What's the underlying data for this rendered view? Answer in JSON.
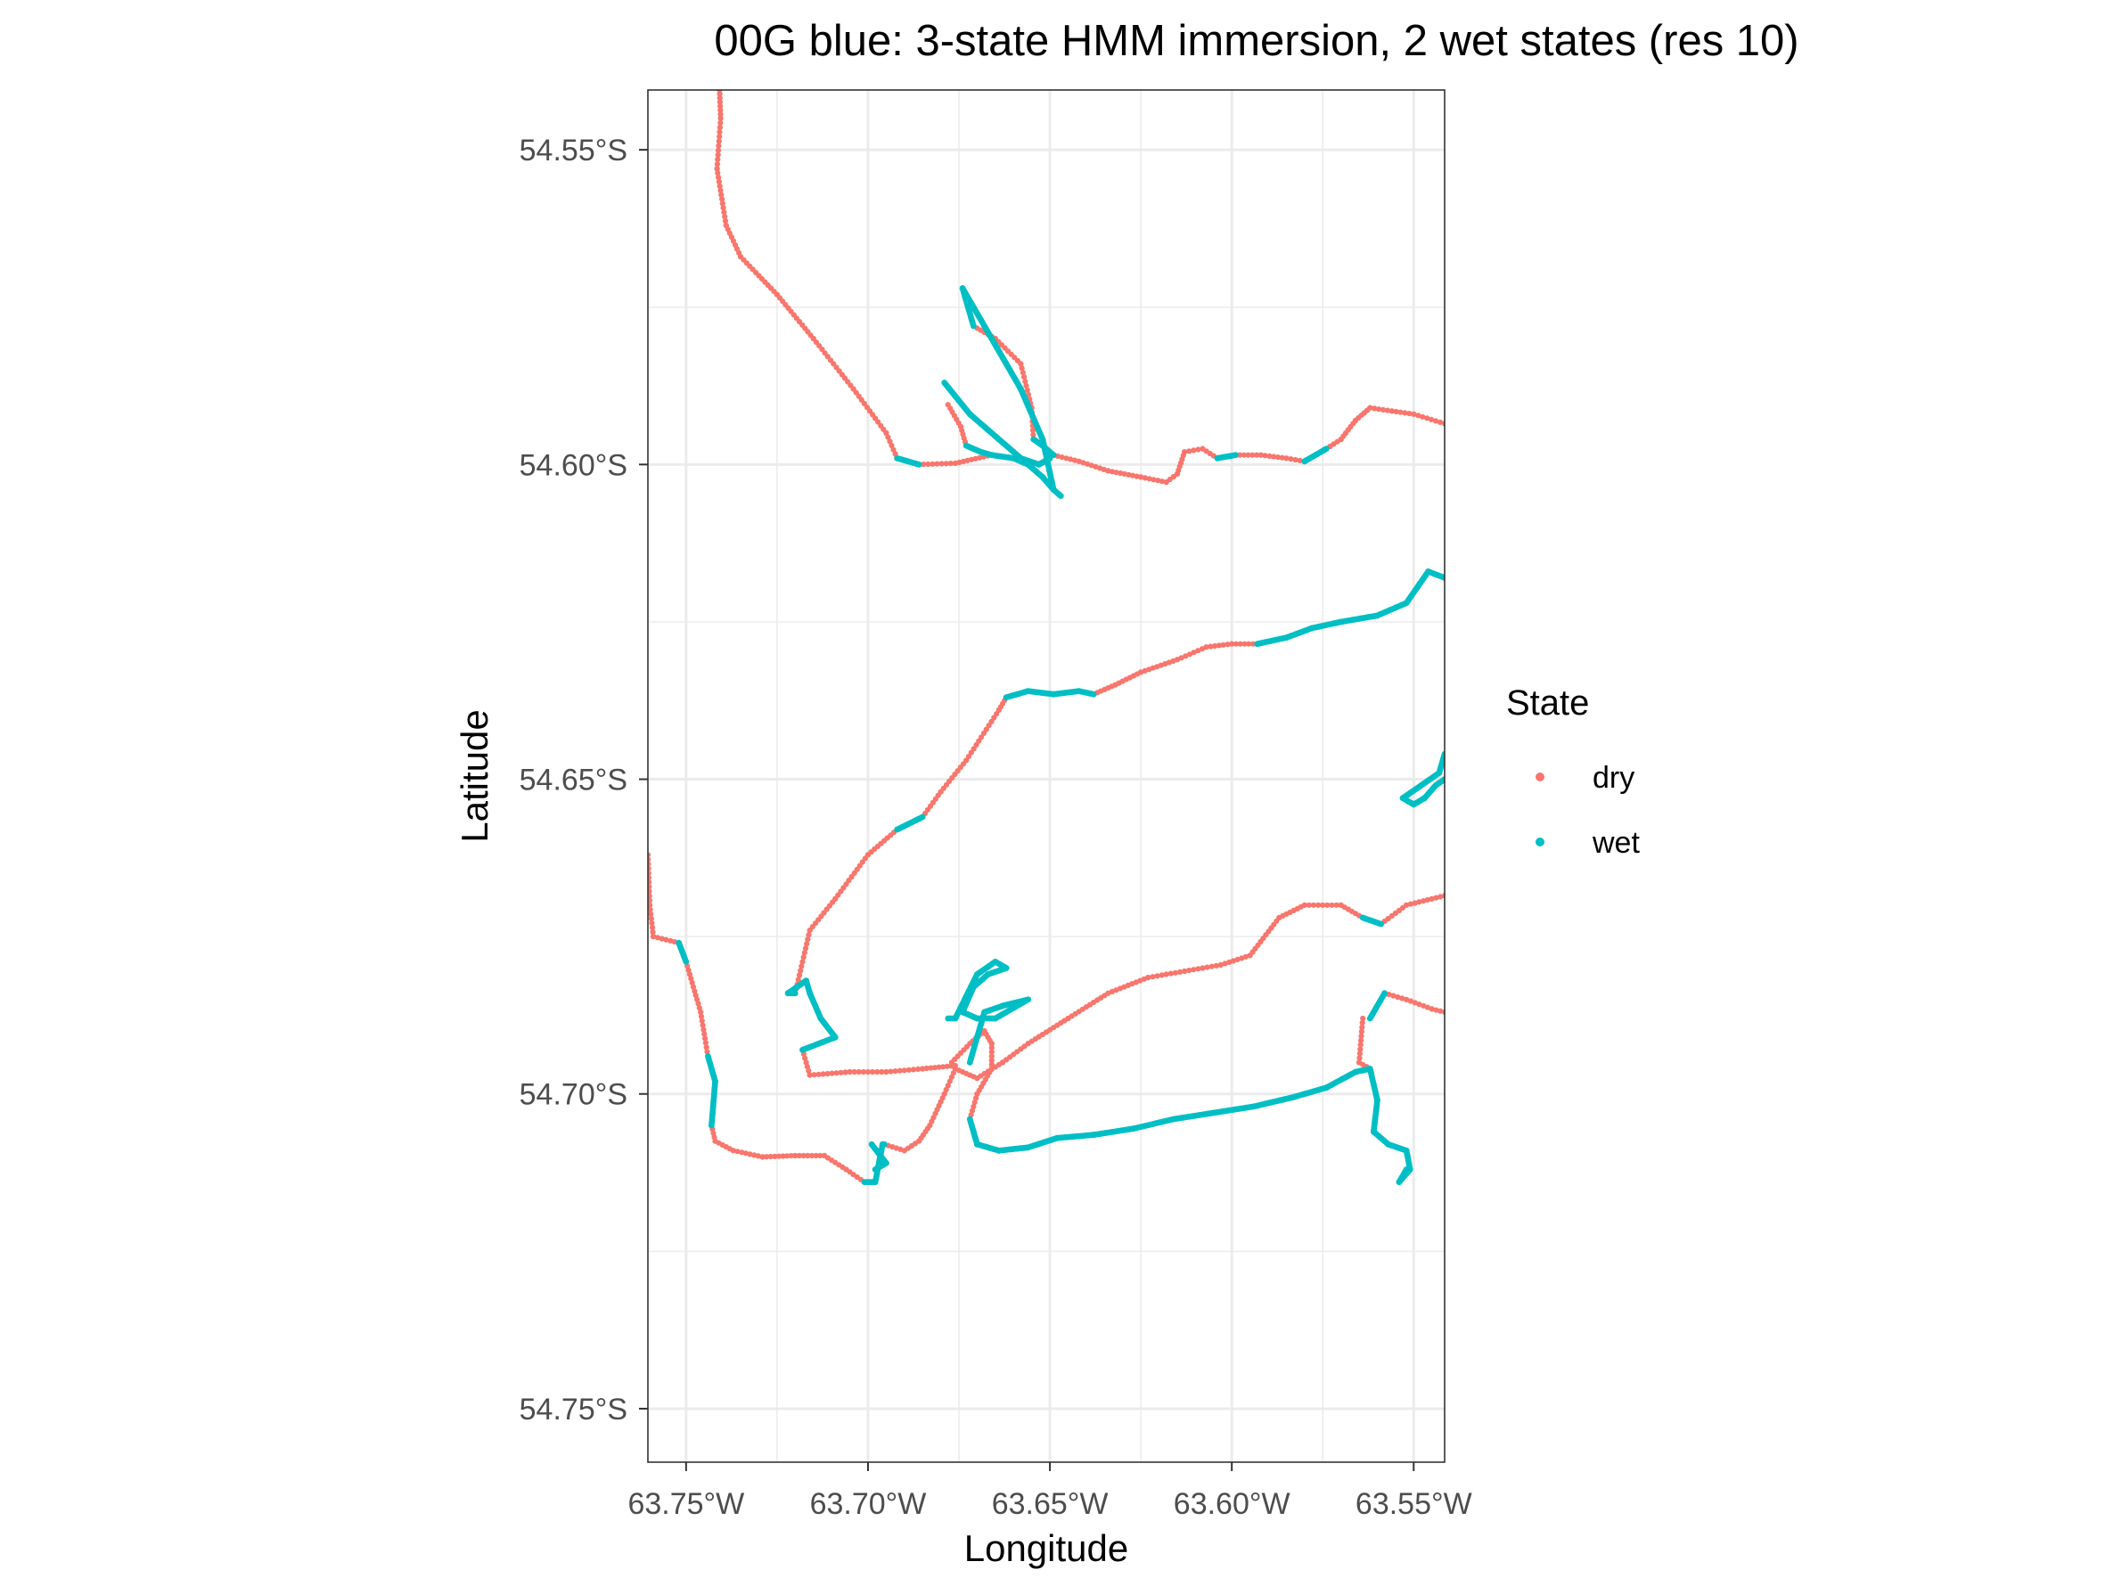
{
  "chart_data": {
    "type": "scatter",
    "title": "00G blue: 3-state HMM immersion, 2 wet states (res 10)",
    "xlabel": "Longitude",
    "ylabel": "Latitude",
    "xlim": [
      -63.7605,
      -63.5415
    ],
    "ylim": [
      -54.7585,
      -54.5405
    ],
    "x_ticks": [
      {
        "value": -63.75,
        "label": "63.75°W"
      },
      {
        "value": -63.7,
        "label": "63.70°W"
      },
      {
        "value": -63.65,
        "label": "63.65°W"
      },
      {
        "value": -63.6,
        "label": "63.60°W"
      },
      {
        "value": -63.55,
        "label": "63.55°W"
      }
    ],
    "y_ticks": [
      {
        "value": -54.55,
        "label": "54.55°S"
      },
      {
        "value": -54.6,
        "label": "54.60°S"
      },
      {
        "value": -54.65,
        "label": "54.65°S"
      },
      {
        "value": -54.7,
        "label": "54.70°S"
      },
      {
        "value": -54.75,
        "label": "54.75°S"
      }
    ],
    "grid": true,
    "legend": {
      "title": "State",
      "position": "right",
      "entries": [
        {
          "label": "dry",
          "color": "#F8766D"
        },
        {
          "label": "wet",
          "color": "#00BFC4"
        }
      ]
    },
    "series": [
      {
        "name": "dry",
        "color": "#F8766D",
        "segments": [
          [
            [
              -63.7408,
              -54.5405
            ],
            [
              -63.7405,
              -54.545
            ],
            [
              -63.7415,
              -54.553
            ],
            [
              -63.739,
              -54.562
            ],
            [
              -63.735,
              -54.567
            ],
            [
              -63.725,
              -54.573
            ],
            [
              -63.715,
              -54.58
            ],
            [
              -63.704,
              -54.588
            ],
            [
              -63.695,
              -54.595
            ],
            [
              -63.692,
              -54.599
            ]
          ],
          [
            [
              -63.686,
              -54.6
            ],
            [
              -63.676,
              -54.5998
            ],
            [
              -63.666,
              -54.5985
            ]
          ],
          [
            [
              -63.678,
              -54.5905
            ],
            [
              -63.6745,
              -54.594
            ],
            [
              -63.673,
              -54.597
            ]
          ],
          [
            [
              -63.671,
              -54.578
            ],
            [
              -63.665,
              -54.58
            ],
            [
              -63.658,
              -54.584
            ],
            [
              -63.655,
              -54.591
            ],
            [
              -63.6545,
              -54.596
            ]
          ],
          [
            [
              -63.649,
              -54.5985
            ],
            [
              -63.642,
              -54.5995
            ],
            [
              -63.634,
              -54.601
            ],
            [
              -63.625,
              -54.602
            ],
            [
              -63.618,
              -54.6028
            ],
            [
              -63.615,
              -54.6015
            ],
            [
              -63.613,
              -54.598
            ],
            [
              -63.608,
              -54.5975
            ],
            [
              -63.604,
              -54.599
            ]
          ],
          [
            [
              -63.599,
              -54.5985
            ],
            [
              -63.592,
              -54.5985
            ],
            [
              -63.585,
              -54.599
            ],
            [
              -63.58,
              -54.5995
            ]
          ],
          [
            [
              -63.574,
              -54.5975
            ],
            [
              -63.57,
              -54.596
            ],
            [
              -63.566,
              -54.593
            ],
            [
              -63.562,
              -54.591
            ],
            [
              -63.556,
              -54.5915
            ],
            [
              -63.55,
              -54.592
            ],
            [
              -63.5415,
              -54.5935
            ]
          ],
          [
            [
              -63.7605,
              -54.662
            ],
            [
              -63.76,
              -54.67
            ],
            [
              -63.759,
              -54.675
            ],
            [
              -63.752,
              -54.676
            ]
          ],
          [
            [
              -63.75,
              -54.679
            ],
            [
              -63.746,
              -54.687
            ],
            [
              -63.744,
              -54.694
            ]
          ],
          [
            [
              -63.743,
              -54.705
            ],
            [
              -63.742,
              -54.7075
            ],
            [
              -63.737,
              -54.709
            ],
            [
              -63.729,
              -54.71
            ],
            [
              -63.72,
              -54.7098
            ],
            [
              -63.712,
              -54.7098
            ],
            [
              -63.706,
              -54.712
            ],
            [
              -63.701,
              -54.714
            ]
          ],
          [
            [
              -63.6955,
              -54.708
            ],
            [
              -63.69,
              -54.709
            ],
            [
              -63.686,
              -54.7075
            ],
            [
              -63.683,
              -54.705
            ],
            [
              -63.679,
              -54.7
            ],
            [
              -63.676,
              -54.696
            ],
            [
              -63.67,
              -54.6975
            ],
            [
              -63.663,
              -54.695
            ],
            [
              -63.656,
              -54.692
            ],
            [
              -63.645,
              -54.688
            ],
            [
              -63.634,
              -54.684
            ],
            [
              -63.623,
              -54.6815
            ],
            [
              -63.613,
              -54.6805
            ],
            [
              -63.603,
              -54.6795
            ],
            [
              -63.595,
              -54.678
            ],
            [
              -63.587,
              -54.672
            ],
            [
              -63.58,
              -54.67
            ],
            [
              -63.57,
              -54.67
            ],
            [
              -63.564,
              -54.672
            ]
          ],
          [
            [
              -63.559,
              -54.673
            ],
            [
              -63.552,
              -54.67
            ],
            [
              -63.545,
              -54.669
            ],
            [
              -63.5415,
              -54.6685
            ]
          ],
          [
            [
              -63.718,
              -54.693
            ],
            [
              -63.716,
              -54.697
            ],
            [
              -63.705,
              -54.6965
            ],
            [
              -63.695,
              -54.6965
            ],
            [
              -63.685,
              -54.696
            ],
            [
              -63.676,
              -54.6955
            ]
          ],
          [
            [
              -63.677,
              -54.695
            ],
            [
              -63.672,
              -54.692
            ],
            [
              -63.668,
              -54.69
            ],
            [
              -63.666,
              -54.692
            ],
            [
              -63.666,
              -54.696
            ],
            [
              -63.67,
              -54.7
            ],
            [
              -63.672,
              -54.704
            ]
          ],
          [
            [
              -63.72,
              -54.684
            ],
            [
              -63.716,
              -54.674
            ],
            [
              -63.709,
              -54.669
            ],
            [
              -63.7,
              -54.662
            ],
            [
              -63.692,
              -54.658
            ]
          ],
          [
            [
              -63.685,
              -54.656
            ],
            [
              -63.68,
              -54.652
            ],
            [
              -63.673,
              -54.647
            ],
            [
              -63.664,
              -54.639
            ],
            [
              -63.662,
              -54.637
            ]
          ],
          [
            [
              -63.638,
              -54.6365
            ],
            [
              -63.632,
              -54.635
            ],
            [
              -63.625,
              -54.633
            ],
            [
              -63.615,
              -54.631
            ],
            [
              -63.607,
              -54.629
            ],
            [
              -63.6,
              -54.6285
            ],
            [
              -63.593,
              -54.6285
            ]
          ],
          [
            [
              -63.564,
              -54.688
            ],
            [
              -63.565,
              -54.695
            ],
            [
              -63.562,
              -54.696
            ]
          ],
          [
            [
              -63.558,
              -54.684
            ],
            [
              -63.552,
              -54.685
            ],
            [
              -63.545,
              -54.6865
            ],
            [
              -63.5415,
              -54.687
            ]
          ]
        ]
      },
      {
        "name": "wet",
        "color": "#00BFC4",
        "segments": [
          [
            [
              -63.692,
              -54.599
            ],
            [
              -63.686,
              -54.6
            ]
          ],
          [
            [
              -63.673,
              -54.597
            ],
            [
              -63.669,
              -54.598
            ],
            [
              -63.666,
              -54.5985
            ],
            [
              -63.66,
              -54.599
            ],
            [
              -63.656,
              -54.6
            ],
            [
              -63.652,
              -54.602
            ],
            [
              -63.649,
              -54.604
            ]
          ],
          [
            [
              -63.679,
              -54.587
            ],
            [
              -63.672,
              -54.592
            ],
            [
              -63.664,
              -54.596
            ],
            [
              -63.658,
              -54.599
            ],
            [
              -63.653,
              -54.6
            ],
            [
              -63.65,
              -54.599
            ]
          ],
          [
            [
              -63.674,
              -54.572
            ],
            [
              -63.671,
              -54.578
            ]
          ],
          [
            [
              -63.6545,
              -54.596
            ],
            [
              -63.652,
              -54.597
            ],
            [
              -63.649,
              -54.5985
            ]
          ],
          [
            [
              -63.674,
              -54.572
            ],
            [
              -63.666,
              -54.58
            ],
            [
              -63.658,
              -54.588
            ],
            [
              -63.652,
              -54.596
            ],
            [
              -63.649,
              -54.604
            ],
            [
              -63.647,
              -54.605
            ]
          ],
          [
            [
              -63.604,
              -54.599
            ],
            [
              -63.599,
              -54.5985
            ]
          ],
          [
            [
              -63.58,
              -54.5995
            ],
            [
              -63.574,
              -54.5975
            ]
          ],
          [
            [
              -63.593,
              -54.6285
            ],
            [
              -63.585,
              -54.6275
            ],
            [
              -63.578,
              -54.626
            ],
            [
              -63.57,
              -54.625
            ],
            [
              -63.56,
              -54.624
            ],
            [
              -63.552,
              -54.622
            ],
            [
              -63.546,
              -54.617
            ],
            [
              -63.5415,
              -54.618
            ]
          ],
          [
            [
              -63.662,
              -54.637
            ],
            [
              -63.656,
              -54.636
            ],
            [
              -63.649,
              -54.6365
            ],
            [
              -63.642,
              -54.636
            ],
            [
              -63.638,
              -54.6365
            ]
          ],
          [
            [
              -63.692,
              -54.658
            ],
            [
              -63.685,
              -54.656
            ]
          ],
          [
            [
              -63.722,
              -54.684
            ],
            [
              -63.717,
              -54.682
            ],
            [
              -63.716,
              -54.684
            ],
            [
              -63.713,
              -54.688
            ],
            [
              -63.709,
              -54.691
            ],
            [
              -63.718,
              -54.693
            ]
          ],
          [
            [
              -63.72,
              -54.684
            ],
            [
              -63.722,
              -54.684
            ]
          ],
          [
            [
              -63.752,
              -54.676
            ],
            [
              -63.75,
              -54.679
            ]
          ],
          [
            [
              -63.744,
              -54.694
            ],
            [
              -63.742,
              -54.698
            ],
            [
              -63.743,
              -54.705
            ]
          ],
          [
            [
              -63.701,
              -54.714
            ],
            [
              -63.698,
              -54.714
            ],
            [
              -63.696,
              -54.708
            ],
            [
              -63.6955,
              -54.708
            ]
          ],
          [
            [
              -63.699,
              -54.708
            ],
            [
              -63.695,
              -54.711
            ],
            [
              -63.698,
              -54.712
            ]
          ],
          [
            [
              -63.672,
              -54.695
            ],
            [
              -63.668,
              -54.687
            ],
            [
              -63.663,
              -54.686
            ],
            [
              -63.656,
              -54.685
            ],
            [
              -63.665,
              -54.688
            ],
            [
              -63.67,
              -54.688
            ],
            [
              -63.674,
              -54.687
            ],
            [
              -63.671,
              -54.683
            ],
            [
              -63.667,
              -54.681
            ],
            [
              -63.662,
              -54.68
            ],
            [
              -63.665,
              -54.679
            ],
            [
              -63.67,
              -54.681
            ],
            [
              -63.676,
              -54.688
            ],
            [
              -63.678,
              -54.688
            ]
          ],
          [
            [
              -63.672,
              -54.704
            ],
            [
              -63.67,
              -54.708
            ],
            [
              -63.664,
              -54.709
            ],
            [
              -63.656,
              -54.7085
            ],
            [
              -63.648,
              -54.707
            ],
            [
              -63.638,
              -54.7065
            ],
            [
              -63.627,
              -54.7055
            ],
            [
              -63.616,
              -54.704
            ],
            [
              -63.605,
              -54.703
            ],
            [
              -63.594,
              -54.702
            ],
            [
              -63.583,
              -54.7005
            ],
            [
              -63.574,
              -54.699
            ],
            [
              -63.566,
              -54.6965
            ],
            [
              -63.562,
              -54.696
            ]
          ],
          [
            [
              -63.562,
              -54.696
            ],
            [
              -63.56,
              -54.701
            ],
            [
              -63.561,
              -54.706
            ],
            [
              -63.557,
              -54.708
            ],
            [
              -63.552,
              -54.709
            ],
            [
              -63.551,
              -54.712
            ],
            [
              -63.554,
              -54.714
            ],
            [
              -63.552,
              -54.712
            ]
          ],
          [
            [
              -63.564,
              -54.672
            ],
            [
              -63.559,
              -54.673
            ]
          ],
          [
            [
              -63.562,
              -54.688
            ],
            [
              -63.558,
              -54.684
            ]
          ],
          [
            [
              -63.553,
              -54.653
            ],
            [
              -63.548,
              -54.651
            ],
            [
              -63.543,
              -54.649
            ],
            [
              -63.5415,
              -54.646
            ]
          ],
          [
            [
              -63.553,
              -54.653
            ],
            [
              -63.55,
              -54.654
            ],
            [
              -63.547,
              -54.653
            ],
            [
              -63.544,
              -54.651
            ],
            [
              -63.5415,
              -54.65
            ]
          ]
        ]
      }
    ]
  }
}
